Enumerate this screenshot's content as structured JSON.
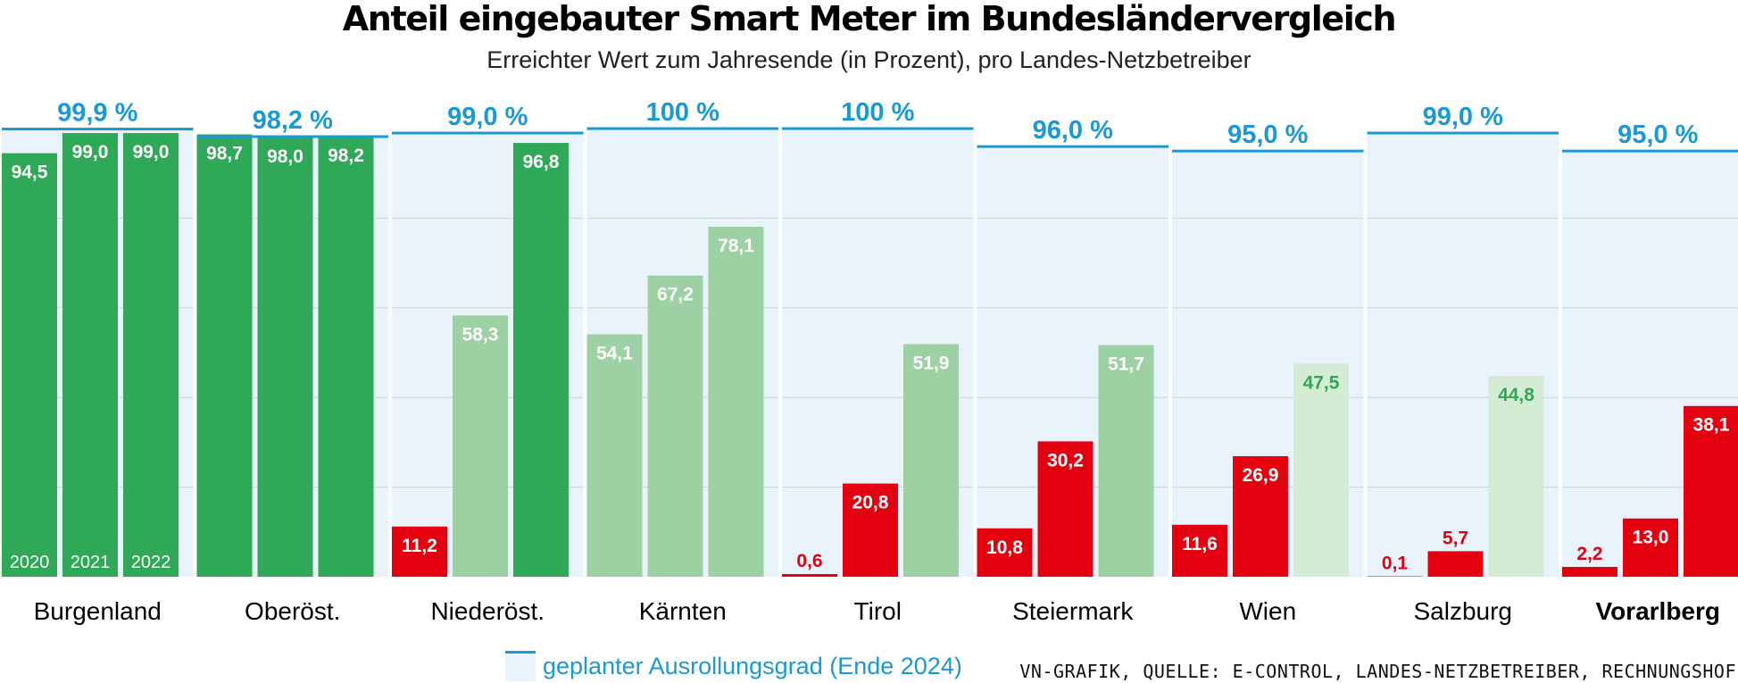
{
  "chart_data": {
    "type": "bar",
    "title": "Anteil eingebauter Smart Meter im Bundesländervergleich",
    "subtitle": "Erreichter Wert zum Jahresende (in Prozent), pro Landes-Netzbetreiber",
    "ylim": [
      0,
      100
    ],
    "grid": true,
    "year_labels": [
      "2020",
      "2021",
      "2022"
    ],
    "groups": [
      {
        "region": "Burgenland",
        "target": 99.9,
        "target_label": "99,9 %",
        "values": [
          94.5,
          99.0,
          99.0
        ],
        "value_labels": [
          "94,5",
          "99,0",
          "99,0"
        ],
        "bar_colors": [
          "#2fa857",
          "#2fa857",
          "#2fa857"
        ]
      },
      {
        "region": "Oberöst.",
        "target": 98.2,
        "target_label": "98,2 %",
        "values": [
          98.7,
          98.0,
          98.2
        ],
        "value_labels": [
          "98,7",
          "98,0",
          "98,2"
        ],
        "bar_colors": [
          "#2fa857",
          "#2fa857",
          "#2fa857"
        ]
      },
      {
        "region": "Niederöst.",
        "target": 99.0,
        "target_label": "99,0 %",
        "values": [
          11.2,
          58.3,
          96.8
        ],
        "value_labels": [
          "11,2",
          "58,3",
          "96,8"
        ],
        "bar_colors": [
          "#e3000f",
          "#9dd1a3",
          "#2fa857"
        ]
      },
      {
        "region": "Kärnten",
        "target": 100,
        "target_label": "100 %",
        "values": [
          54.1,
          67.2,
          78.1
        ],
        "value_labels": [
          "54,1",
          "67,2",
          "78,1"
        ],
        "bar_colors": [
          "#9dd1a3",
          "#9dd1a3",
          "#9dd1a3"
        ]
      },
      {
        "region": "Tirol",
        "target": 100,
        "target_label": "100 %",
        "values": [
          0.6,
          20.8,
          51.9
        ],
        "value_labels": [
          "0,6",
          "20,8",
          "51,9"
        ],
        "bar_colors": [
          "#e3000f",
          "#e3000f",
          "#9dd1a3"
        ]
      },
      {
        "region": "Steiermark",
        "target": 96.0,
        "target_label": "96,0 %",
        "values": [
          10.8,
          30.2,
          51.7
        ],
        "value_labels": [
          "10,8",
          "30,2",
          "51,7"
        ],
        "bar_colors": [
          "#e3000f",
          "#e3000f",
          "#9dd1a3"
        ]
      },
      {
        "region": "Wien",
        "target": 95.0,
        "target_label": "95,0 %",
        "values": [
          11.6,
          26.9,
          47.5
        ],
        "value_labels": [
          "11,6",
          "26,9",
          "47,5"
        ],
        "bar_colors": [
          "#e3000f",
          "#e3000f",
          "#d4ebd4"
        ]
      },
      {
        "region": "Salzburg",
        "target": 99.0,
        "target_label": "99,0 %",
        "values": [
          0.1,
          5.7,
          44.8
        ],
        "value_labels": [
          "0,1",
          "5,7",
          "44,8"
        ],
        "bar_colors": [
          "#e3000f",
          "#e3000f",
          "#d4ebd4"
        ]
      },
      {
        "region": "Vorarlberg",
        "target": 95.0,
        "target_label": "95,0 %",
        "values": [
          2.2,
          13.0,
          38.1
        ],
        "value_labels": [
          "2,2",
          "13,0",
          "38,1"
        ],
        "bar_colors": [
          "#e3000f",
          "#e3000f",
          "#e3000f"
        ],
        "highlight": true
      }
    ],
    "legend": "geplanter Ausrollungsgrad (Ende 2024)",
    "source": "VN-GRAFIK, QUELLE: E-CONTROL, LANDES-NETZBETREIBER, RECHNUNGSHOF"
  },
  "colors": {
    "target_line": "#1a99d5",
    "target_fill": "#e8f3fc",
    "grid": "#c9d3dc",
    "label_dark_green": "#2fa857"
  }
}
